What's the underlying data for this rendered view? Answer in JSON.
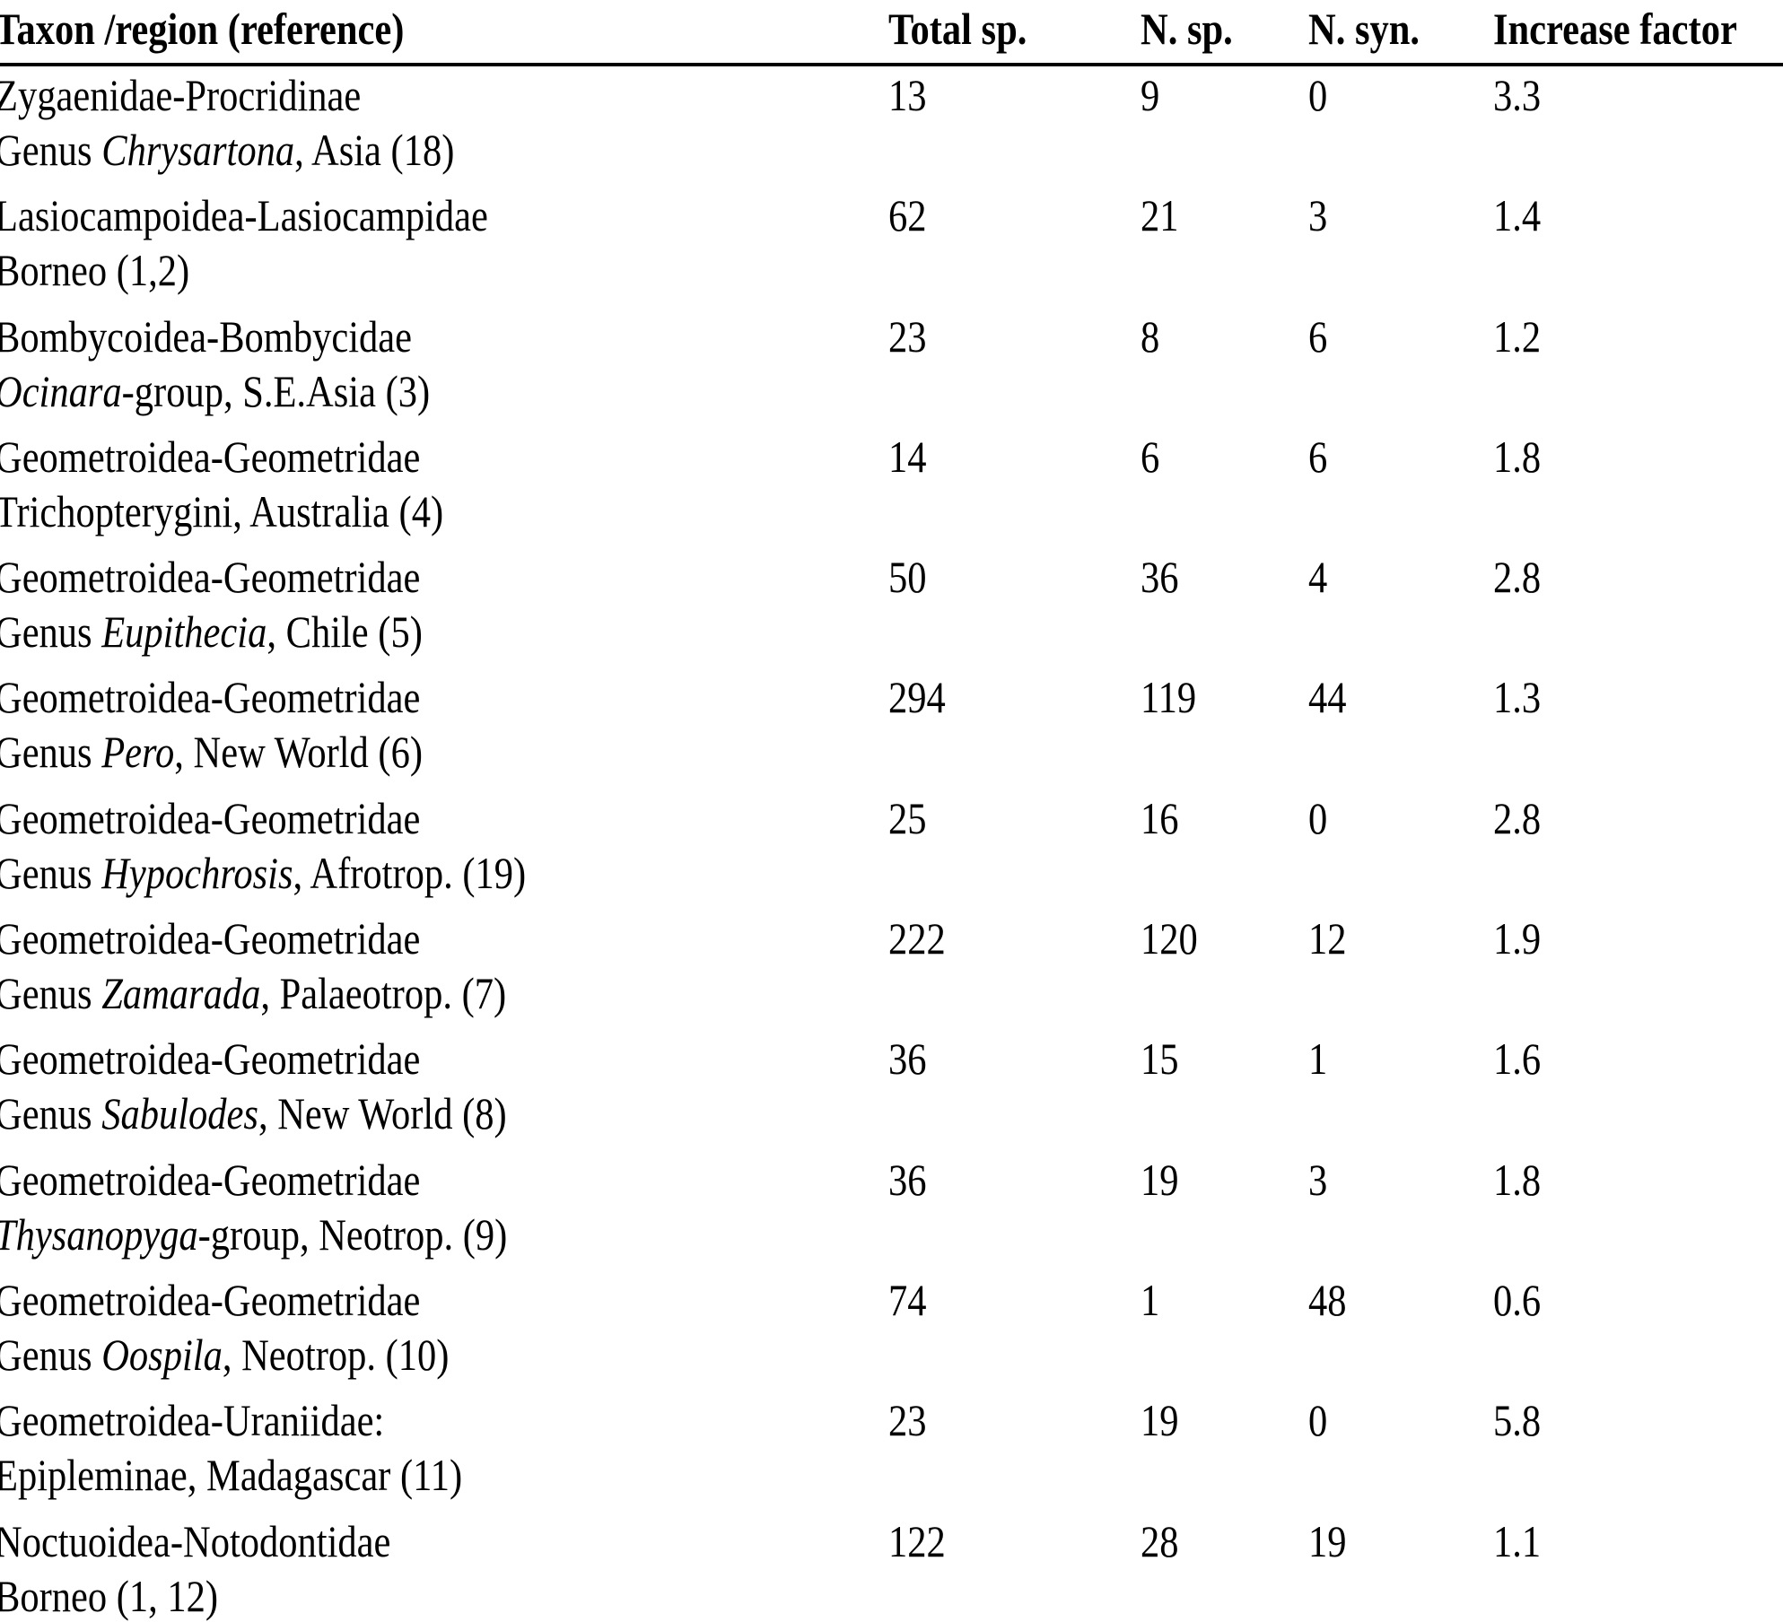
{
  "page": {
    "background": "#ffffff",
    "text_color": "#000000"
  },
  "table": {
    "header": {
      "taxon": "Taxon /region (reference)",
      "total_sp": "Total sp.",
      "n_sp": "N. sp.",
      "n_syn": "N. syn.",
      "increase_factor": "Increase factor"
    },
    "rows": [
      {
        "taxon": "Zygaenidae-Procridinae",
        "region_pre": "Genus ",
        "region_italic": "Chrysartona",
        "region_post": ", Asia (18)",
        "total_sp": "13",
        "n_sp": "9",
        "n_syn": "0",
        "increase_factor": "3.3"
      },
      {
        "taxon": "Lasiocampoidea-Lasiocampidae",
        "region_pre": "Borneo (1,2)",
        "region_italic": "",
        "region_post": "",
        "total_sp": "62",
        "n_sp": "21",
        "n_syn": "3",
        "increase_factor": "1.4"
      },
      {
        "taxon": "Bombycoidea-Bombycidae",
        "region_pre": "",
        "region_italic": "Ocinara",
        "region_post": "-group, S.E.Asia (3)",
        "total_sp": "23",
        "n_sp": "8",
        "n_syn": "6",
        "increase_factor": "1.2"
      },
      {
        "taxon": "Geometroidea-Geometridae",
        "region_pre": "Trichopterygini, Australia (4)",
        "region_italic": "",
        "region_post": "",
        "total_sp": "14",
        "n_sp": "6",
        "n_syn": "6",
        "increase_factor": "1.8"
      },
      {
        "taxon": "Geometroidea-Geometridae",
        "region_pre": "Genus ",
        "region_italic": "Eupithecia",
        "region_post": ", Chile (5)",
        "total_sp": "50",
        "n_sp": "36",
        "n_syn": "4",
        "increase_factor": "2.8"
      },
      {
        "taxon": "Geometroidea-Geometridae",
        "region_pre": "Genus ",
        "region_italic": "Pero",
        "region_post": ", New World (6)",
        "total_sp": "294",
        "n_sp": "119",
        "n_syn": "44",
        "increase_factor": "1.3"
      },
      {
        "taxon": "Geometroidea-Geometridae",
        "region_pre": "Genus ",
        "region_italic": "Hypochrosis",
        "region_post": ", Afrotrop. (19)",
        "total_sp": "25",
        "n_sp": "16",
        "n_syn": "0",
        "increase_factor": "2.8"
      },
      {
        "taxon": "Geometroidea-Geometridae",
        "region_pre": "Genus ",
        "region_italic": "Zamarada",
        "region_post": ", Palaeotrop. (7)",
        "total_sp": "222",
        "n_sp": "120",
        "n_syn": "12",
        "increase_factor": "1.9"
      },
      {
        "taxon": "Geometroidea-Geometridae",
        "region_pre": "Genus ",
        "region_italic": "Sabulodes",
        "region_post": ", New World (8)",
        "total_sp": "36",
        "n_sp": "15",
        "n_syn": "1",
        "increase_factor": "1.6"
      },
      {
        "taxon": "Geometroidea-Geometridae",
        "region_pre": "",
        "region_italic": "Thysanopyga",
        "region_post": "-group, Neotrop. (9)",
        "total_sp": "36",
        "n_sp": "19",
        "n_syn": "3",
        "increase_factor": "1.8"
      },
      {
        "taxon": "Geometroidea-Geometridae",
        "region_pre": "Genus ",
        "region_italic": "Oospila",
        "region_post": ", Neotrop. (10)",
        "total_sp": "74",
        "n_sp": "1",
        "n_syn": "48",
        "increase_factor": "0.6"
      },
      {
        "taxon": "Geometroidea-Uraniidae:",
        "region_pre": "Epipleminae, Madagascar (11)",
        "region_italic": "",
        "region_post": "",
        "total_sp": "23",
        "n_sp": "19",
        "n_syn": "0",
        "increase_factor": "5.8"
      },
      {
        "taxon": "Noctuoidea-Notodontidae",
        "region_pre": "Borneo (1, 12)",
        "region_italic": "",
        "region_post": "",
        "total_sp": "122",
        "n_sp": "28",
        "n_syn": "19",
        "increase_factor": "1.1"
      }
    ]
  }
}
